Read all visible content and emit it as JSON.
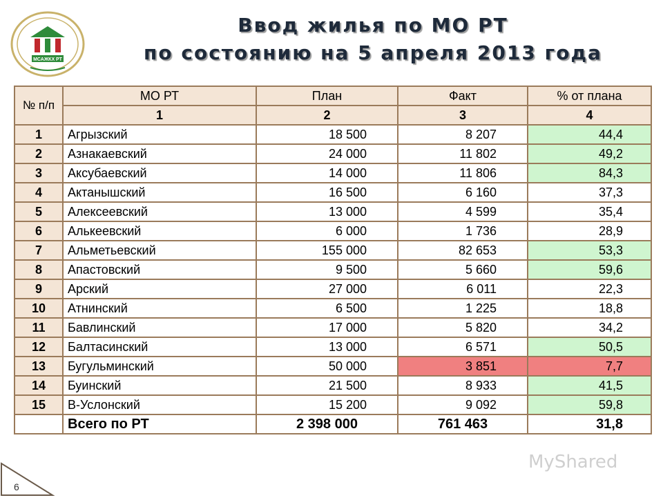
{
  "title_line1": "Ввод жилья по МО РТ",
  "title_line2": "по состоянию на 5 апреля 2013 года",
  "logo_text": "МСАЖКХ РТ",
  "columns": {
    "num": "№ п/п",
    "mo": "МО РТ",
    "plan": "План",
    "fact": "Факт",
    "pct": "% от плана"
  },
  "column_index": [
    "1",
    "2",
    "3",
    "4"
  ],
  "rows": [
    {
      "n": "1",
      "name": "Агрызский",
      "plan": "18 500",
      "fact": "8 207",
      "pct": "44,4",
      "status": "pos"
    },
    {
      "n": "2",
      "name": "Азнакаевский",
      "plan": "24 000",
      "fact": "11 802",
      "pct": "49,2",
      "status": "pos"
    },
    {
      "n": "3",
      "name": "Аксубаевский",
      "plan": "14 000",
      "fact": "11 806",
      "pct": "84,3",
      "status": "pos"
    },
    {
      "n": "4",
      "name": "Актанышский",
      "plan": "16 500",
      "fact": "6 160",
      "pct": "37,3",
      "status": "none"
    },
    {
      "n": "5",
      "name": "Алексеевский",
      "plan": "13 000",
      "fact": "4 599",
      "pct": "35,4",
      "status": "none"
    },
    {
      "n": "6",
      "name": "Алькеевский",
      "plan": "6 000",
      "fact": "1 736",
      "pct": "28,9",
      "status": "none"
    },
    {
      "n": "7",
      "name": "Альметьевский",
      "plan": "155 000",
      "fact": "82 653",
      "pct": "53,3",
      "status": "pos"
    },
    {
      "n": "8",
      "name": "Апастовский",
      "plan": "9 500",
      "fact": "5 660",
      "pct": "59,6",
      "status": "pos"
    },
    {
      "n": "9",
      "name": "Арский",
      "plan": "27 000",
      "fact": "6 011",
      "pct": "22,3",
      "status": "none"
    },
    {
      "n": "10",
      "name": "Атнинский",
      "plan": "6 500",
      "fact": "1 225",
      "pct": "18,8",
      "status": "none"
    },
    {
      "n": "11",
      "name": "Бавлинский",
      "plan": "17 000",
      "fact": "5 820",
      "pct": "34,2",
      "status": "none"
    },
    {
      "n": "12",
      "name": "Балтасинский",
      "plan": "13 000",
      "fact": "6 571",
      "pct": "50,5",
      "status": "pos"
    },
    {
      "n": "13",
      "name": "Бугульминский",
      "plan": "50 000",
      "fact": "3 851",
      "pct": "7,7",
      "status": "neg"
    },
    {
      "n": "14",
      "name": "Буинский",
      "plan": "21 500",
      "fact": "8 933",
      "pct": "41,5",
      "status": "pos"
    },
    {
      "n": "15",
      "name": "В-Услонский",
      "plan": "15 200",
      "fact": "9 092",
      "pct": "59,8",
      "status": "pos"
    }
  ],
  "total": {
    "label": "Всего по РТ",
    "plan": "2 398 000",
    "fact": "761 463",
    "pct": "31,8"
  },
  "page_number": "6",
  "watermark": "MyShared",
  "colors": {
    "header_bg": "#f4e5d6",
    "above_half": "#cff5cf",
    "below_target": "#f08080",
    "border": "#9a7a5a"
  }
}
